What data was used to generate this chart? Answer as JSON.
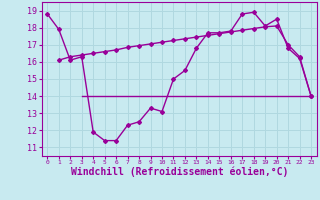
{
  "xlabel": "Windchill (Refroidissement éolien,°C)",
  "background_color": "#c8eaf0",
  "line_color": "#990099",
  "xlim": [
    -0.5,
    23.5
  ],
  "ylim": [
    10.5,
    19.5
  ],
  "yticks": [
    11,
    12,
    13,
    14,
    15,
    16,
    17,
    18,
    19
  ],
  "xticks": [
    0,
    1,
    2,
    3,
    4,
    5,
    6,
    7,
    8,
    9,
    10,
    11,
    12,
    13,
    14,
    15,
    16,
    17,
    18,
    19,
    20,
    21,
    22,
    23
  ],
  "series1_x": [
    0,
    1,
    2,
    3,
    4,
    5,
    6,
    7,
    8,
    9,
    10,
    11,
    12,
    13,
    14,
    15,
    16,
    17,
    18,
    19,
    20,
    21,
    22,
    23
  ],
  "series1_y": [
    18.8,
    17.9,
    16.1,
    16.3,
    11.9,
    11.4,
    11.4,
    12.3,
    12.5,
    13.3,
    13.1,
    15.0,
    15.5,
    16.8,
    17.7,
    17.7,
    17.8,
    18.8,
    18.9,
    18.1,
    18.5,
    16.8,
    16.2,
    14.0
  ],
  "series2_x": [
    1,
    2,
    3,
    4,
    5,
    6,
    7,
    8,
    9,
    10,
    11,
    12,
    13,
    14,
    15,
    16,
    17,
    18,
    19,
    20,
    21,
    22,
    23
  ],
  "series2_y": [
    16.1,
    16.3,
    16.4,
    16.5,
    16.6,
    16.7,
    16.85,
    16.95,
    17.05,
    17.15,
    17.25,
    17.35,
    17.45,
    17.55,
    17.65,
    17.75,
    17.85,
    17.95,
    18.05,
    18.1,
    17.0,
    16.3,
    14.0
  ],
  "series3_x": [
    3,
    10,
    23
  ],
  "series3_y": [
    14.0,
    14.0,
    14.0
  ],
  "grid_color": "#b0d8e0",
  "label_fontsize": 7,
  "tick_fontsize": 6
}
